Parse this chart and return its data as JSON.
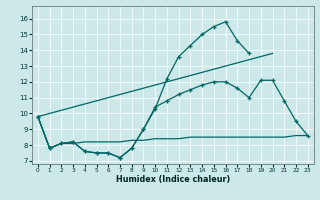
{
  "xlabel": "Humidex (Indice chaleur)",
  "bg_color": "#cce8e8",
  "line_color": "#006666",
  "xlim": [
    -0.5,
    23.5
  ],
  "ylim": [
    6.8,
    16.8
  ],
  "xticks": [
    0,
    1,
    2,
    3,
    4,
    5,
    6,
    7,
    8,
    9,
    10,
    11,
    12,
    13,
    14,
    15,
    16,
    17,
    18,
    19,
    20,
    21,
    22,
    23
  ],
  "yticks": [
    7,
    8,
    9,
    10,
    11,
    12,
    13,
    14,
    15,
    16
  ],
  "curve1_x": [
    0,
    1,
    2,
    3,
    4,
    5,
    6,
    7,
    8,
    9,
    10,
    11,
    12,
    13,
    14,
    15,
    16,
    17,
    18
  ],
  "curve1_y": [
    9.8,
    7.8,
    8.1,
    8.2,
    7.6,
    7.5,
    7.5,
    7.2,
    7.8,
    9.0,
    10.3,
    12.2,
    13.6,
    14.3,
    15.0,
    15.5,
    15.8,
    14.6,
    13.8
  ],
  "curve2_x": [
    0,
    1,
    2,
    3,
    4,
    5,
    6,
    7,
    8,
    9,
    10,
    11,
    12,
    13,
    14,
    15,
    16,
    17,
    18,
    19,
    20,
    21,
    22,
    23
  ],
  "curve2_y": [
    9.8,
    7.8,
    8.1,
    8.2,
    7.6,
    7.5,
    7.5,
    7.2,
    7.8,
    9.0,
    10.4,
    10.8,
    11.2,
    11.5,
    11.8,
    12.0,
    12.0,
    11.6,
    11.0,
    12.1,
    12.1,
    10.8,
    9.5,
    8.6
  ],
  "line3_x": [
    0,
    20
  ],
  "line3_y": [
    9.8,
    13.8
  ],
  "curve4_x": [
    0,
    1,
    2,
    3,
    4,
    5,
    6,
    7,
    8,
    9,
    10,
    11,
    12,
    13,
    14,
    15,
    16,
    17,
    18,
    19,
    20,
    21,
    22,
    23
  ],
  "curve4_y": [
    9.8,
    7.8,
    8.1,
    8.1,
    8.2,
    8.2,
    8.2,
    8.2,
    8.3,
    8.3,
    8.4,
    8.4,
    8.4,
    8.5,
    8.5,
    8.5,
    8.5,
    8.5,
    8.5,
    8.5,
    8.5,
    8.5,
    8.6,
    8.6
  ]
}
